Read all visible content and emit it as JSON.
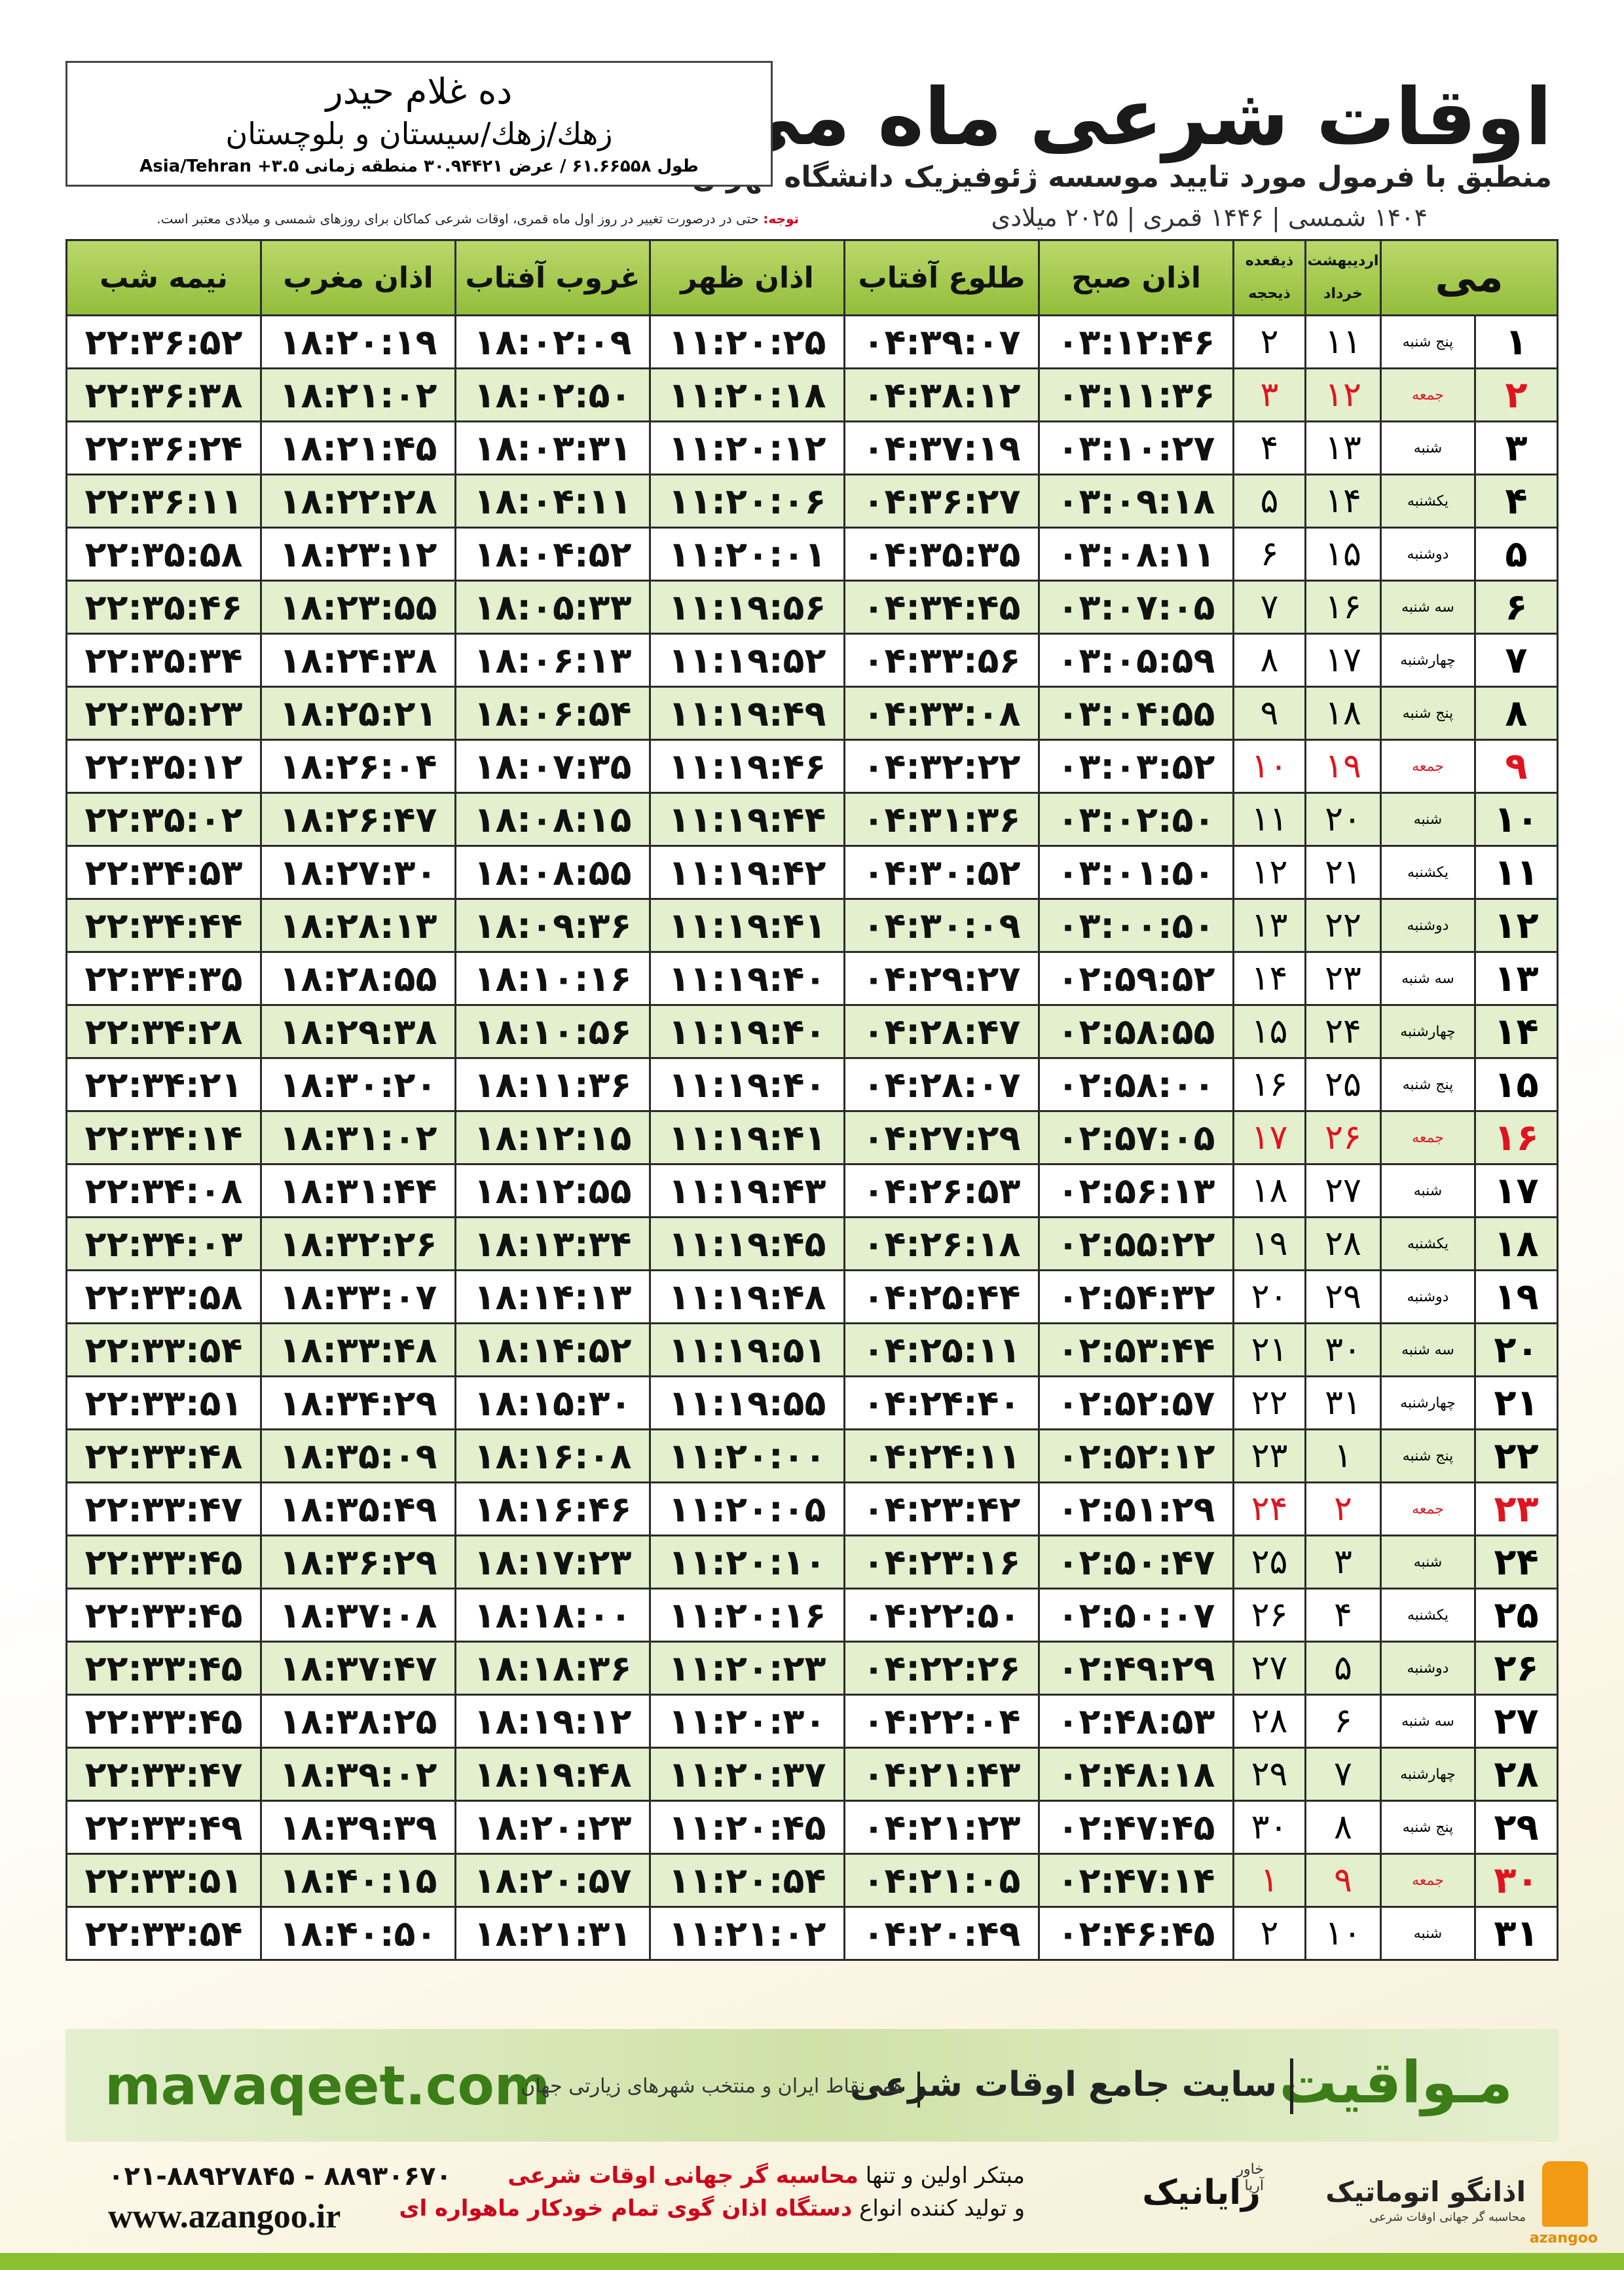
{
  "header": {
    "title": "اوقات شرعی ماه می",
    "subtitle": "منطبق با فرمول مورد تایید موسسه ژئوفیزیک دانشگاه تهران",
    "dates": "۱۴۰۴ شمسی | ۱۴۴۶ قمری | ۲۰۲۵ میلادی"
  },
  "location": {
    "name": "ده غلام حیدر",
    "region": "زهك/زهك/سیستان و بلوچستان",
    "coords": "طول ۶۱.۶۶۵۵۸ / عرض ۳۰.۹۴۴۲۱ منطقه زمانی ۳.۵+ Asia/Tehran"
  },
  "note": {
    "label": "توجه:",
    "text": "حتی در درصورت تغییر در روز اول ماه قمری، اوقات شرعی کماکان برای روزهای شمسی و میلادی معتبر است."
  },
  "table": {
    "header": {
      "month": "می",
      "shamsi": [
        "اردیبهشت",
        "خرداد"
      ],
      "qamari": [
        "ذیقعده",
        "ذیحجه"
      ],
      "columns": [
        "اذان صبح",
        "طلوع آفتاب",
        "اذان ظهر",
        "غروب آفتاب",
        "اذان مغرب",
        "نیمه شب"
      ]
    },
    "rows": [
      {
        "day": "۱",
        "weekday": "پنج شنبه",
        "shamsi": "۱۱",
        "qamari": "۲",
        "times": [
          "۰۳:۱۲:۴۶",
          "۰۴:۳۹:۰۷",
          "۱۱:۲۰:۲۵",
          "۱۸:۰۲:۰۹",
          "۱۸:۲۰:۱۹",
          "۲۲:۳۶:۵۲"
        ]
      },
      {
        "day": "۲",
        "weekday": "جمعه",
        "shamsi": "۱۲",
        "qamari": "۳",
        "holiday": true,
        "times": [
          "۰۳:۱۱:۳۶",
          "۰۴:۳۸:۱۲",
          "۱۱:۲۰:۱۸",
          "۱۸:۰۲:۵۰",
          "۱۸:۲۱:۰۲",
          "۲۲:۳۶:۳۸"
        ]
      },
      {
        "day": "۳",
        "weekday": "شنبه",
        "shamsi": "۱۳",
        "qamari": "۴",
        "times": [
          "۰۳:۱۰:۲۷",
          "۰۴:۳۷:۱۹",
          "۱۱:۲۰:۱۲",
          "۱۸:۰۳:۳۱",
          "۱۸:۲۱:۴۵",
          "۲۲:۳۶:۲۴"
        ]
      },
      {
        "day": "۴",
        "weekday": "یکشنبه",
        "shamsi": "۱۴",
        "qamari": "۵",
        "times": [
          "۰۳:۰۹:۱۸",
          "۰۴:۳۶:۲۷",
          "۱۱:۲۰:۰۶",
          "۱۸:۰۴:۱۱",
          "۱۸:۲۲:۲۸",
          "۲۲:۳۶:۱۱"
        ]
      },
      {
        "day": "۵",
        "weekday": "دوشنبه",
        "shamsi": "۱۵",
        "qamari": "۶",
        "times": [
          "۰۳:۰۸:۱۱",
          "۰۴:۳۵:۳۵",
          "۱۱:۲۰:۰۱",
          "۱۸:۰۴:۵۲",
          "۱۸:۲۳:۱۲",
          "۲۲:۳۵:۵۸"
        ]
      },
      {
        "day": "۶",
        "weekday": "سه شنبه",
        "shamsi": "۱۶",
        "qamari": "۷",
        "times": [
          "۰۳:۰۷:۰۵",
          "۰۴:۳۴:۴۵",
          "۱۱:۱۹:۵۶",
          "۱۸:۰۵:۳۳",
          "۱۸:۲۳:۵۵",
          "۲۲:۳۵:۴۶"
        ]
      },
      {
        "day": "۷",
        "weekday": "چهارشنبه",
        "shamsi": "۱۷",
        "qamari": "۸",
        "times": [
          "۰۳:۰۵:۵۹",
          "۰۴:۳۳:۵۶",
          "۱۱:۱۹:۵۲",
          "۱۸:۰۶:۱۳",
          "۱۸:۲۴:۳۸",
          "۲۲:۳۵:۳۴"
        ]
      },
      {
        "day": "۸",
        "weekday": "پنج شنبه",
        "shamsi": "۱۸",
        "qamari": "۹",
        "times": [
          "۰۳:۰۴:۵۵",
          "۰۴:۳۳:۰۸",
          "۱۱:۱۹:۴۹",
          "۱۸:۰۶:۵۴",
          "۱۸:۲۵:۲۱",
          "۲۲:۳۵:۲۳"
        ]
      },
      {
        "day": "۹",
        "weekday": "جمعه",
        "shamsi": "۱۹",
        "qamari": "۱۰",
        "holiday": true,
        "times": [
          "۰۳:۰۳:۵۲",
          "۰۴:۳۲:۲۲",
          "۱۱:۱۹:۴۶",
          "۱۸:۰۷:۳۵",
          "۱۸:۲۶:۰۴",
          "۲۲:۳۵:۱۲"
        ]
      },
      {
        "day": "۱۰",
        "weekday": "شنبه",
        "shamsi": "۲۰",
        "qamari": "۱۱",
        "times": [
          "۰۳:۰۲:۵۰",
          "۰۴:۳۱:۳۶",
          "۱۱:۱۹:۴۴",
          "۱۸:۰۸:۱۵",
          "۱۸:۲۶:۴۷",
          "۲۲:۳۵:۰۲"
        ]
      },
      {
        "day": "۱۱",
        "weekday": "یکشنبه",
        "shamsi": "۲۱",
        "qamari": "۱۲",
        "times": [
          "۰۳:۰۱:۵۰",
          "۰۴:۳۰:۵۲",
          "۱۱:۱۹:۴۲",
          "۱۸:۰۸:۵۵",
          "۱۸:۲۷:۳۰",
          "۲۲:۳۴:۵۳"
        ]
      },
      {
        "day": "۱۲",
        "weekday": "دوشنبه",
        "shamsi": "۲۲",
        "qamari": "۱۳",
        "times": [
          "۰۳:۰۰:۵۰",
          "۰۴:۳۰:۰۹",
          "۱۱:۱۹:۴۱",
          "۱۸:۰۹:۳۶",
          "۱۸:۲۸:۱۳",
          "۲۲:۳۴:۴۴"
        ]
      },
      {
        "day": "۱۳",
        "weekday": "سه شنبه",
        "shamsi": "۲۳",
        "qamari": "۱۴",
        "times": [
          "۰۲:۵۹:۵۲",
          "۰۴:۲۹:۲۷",
          "۱۱:۱۹:۴۰",
          "۱۸:۱۰:۱۶",
          "۱۸:۲۸:۵۵",
          "۲۲:۳۴:۳۵"
        ]
      },
      {
        "day": "۱۴",
        "weekday": "چهارشنبه",
        "shamsi": "۲۴",
        "qamari": "۱۵",
        "times": [
          "۰۲:۵۸:۵۵",
          "۰۴:۲۸:۴۷",
          "۱۱:۱۹:۴۰",
          "۱۸:۱۰:۵۶",
          "۱۸:۲۹:۳۸",
          "۲۲:۳۴:۲۸"
        ]
      },
      {
        "day": "۱۵",
        "weekday": "پنج شنبه",
        "shamsi": "۲۵",
        "qamari": "۱۶",
        "times": [
          "۰۲:۵۸:۰۰",
          "۰۴:۲۸:۰۷",
          "۱۱:۱۹:۴۰",
          "۱۸:۱۱:۳۶",
          "۱۸:۳۰:۲۰",
          "۲۲:۳۴:۲۱"
        ]
      },
      {
        "day": "۱۶",
        "weekday": "جمعه",
        "shamsi": "۲۶",
        "qamari": "۱۷",
        "holiday": true,
        "times": [
          "۰۲:۵۷:۰۵",
          "۰۴:۲۷:۲۹",
          "۱۱:۱۹:۴۱",
          "۱۸:۱۲:۱۵",
          "۱۸:۳۱:۰۲",
          "۲۲:۳۴:۱۴"
        ]
      },
      {
        "day": "۱۷",
        "weekday": "شنبه",
        "shamsi": "۲۷",
        "qamari": "۱۸",
        "times": [
          "۰۲:۵۶:۱۳",
          "۰۴:۲۶:۵۳",
          "۱۱:۱۹:۴۳",
          "۱۸:۱۲:۵۵",
          "۱۸:۳۱:۴۴",
          "۲۲:۳۴:۰۸"
        ]
      },
      {
        "day": "۱۸",
        "weekday": "یکشنبه",
        "shamsi": "۲۸",
        "qamari": "۱۹",
        "times": [
          "۰۲:۵۵:۲۲",
          "۰۴:۲۶:۱۸",
          "۱۱:۱۹:۴۵",
          "۱۸:۱۳:۳۴",
          "۱۸:۳۲:۲۶",
          "۲۲:۳۴:۰۳"
        ]
      },
      {
        "day": "۱۹",
        "weekday": "دوشنبه",
        "shamsi": "۲۹",
        "qamari": "۲۰",
        "times": [
          "۰۲:۵۴:۳۲",
          "۰۴:۲۵:۴۴",
          "۱۱:۱۹:۴۸",
          "۱۸:۱۴:۱۳",
          "۱۸:۳۳:۰۷",
          "۲۲:۳۳:۵۸"
        ]
      },
      {
        "day": "۲۰",
        "weekday": "سه شنبه",
        "shamsi": "۳۰",
        "qamari": "۲۱",
        "times": [
          "۰۲:۵۳:۴۴",
          "۰۴:۲۵:۱۱",
          "۱۱:۱۹:۵۱",
          "۱۸:۱۴:۵۲",
          "۱۸:۳۳:۴۸",
          "۲۲:۳۳:۵۴"
        ]
      },
      {
        "day": "۲۱",
        "weekday": "چهارشنبه",
        "shamsi": "۳۱",
        "qamari": "۲۲",
        "times": [
          "۰۲:۵۲:۵۷",
          "۰۴:۲۴:۴۰",
          "۱۱:۱۹:۵۵",
          "۱۸:۱۵:۳۰",
          "۱۸:۳۴:۲۹",
          "۲۲:۳۳:۵۱"
        ]
      },
      {
        "day": "۲۲",
        "weekday": "پنج شنبه",
        "shamsi": "۱",
        "qamari": "۲۳",
        "times": [
          "۰۲:۵۲:۱۲",
          "۰۴:۲۴:۱۱",
          "۱۱:۲۰:۰۰",
          "۱۸:۱۶:۰۸",
          "۱۸:۳۵:۰۹",
          "۲۲:۳۳:۴۸"
        ]
      },
      {
        "day": "۲۳",
        "weekday": "جمعه",
        "shamsi": "۲",
        "qamari": "۲۴",
        "holiday": true,
        "times": [
          "۰۲:۵۱:۲۹",
          "۰۴:۲۳:۴۲",
          "۱۱:۲۰:۰۵",
          "۱۸:۱۶:۴۶",
          "۱۸:۳۵:۴۹",
          "۲۲:۳۳:۴۷"
        ]
      },
      {
        "day": "۲۴",
        "weekday": "شنبه",
        "shamsi": "۳",
        "qamari": "۲۵",
        "times": [
          "۰۲:۵۰:۴۷",
          "۰۴:۲۳:۱۶",
          "۱۱:۲۰:۱۰",
          "۱۸:۱۷:۲۳",
          "۱۸:۳۶:۲۹",
          "۲۲:۳۳:۴۵"
        ]
      },
      {
        "day": "۲۵",
        "weekday": "یکشنبه",
        "shamsi": "۴",
        "qamari": "۲۶",
        "times": [
          "۰۲:۵۰:۰۷",
          "۰۴:۲۲:۵۰",
          "۱۱:۲۰:۱۶",
          "۱۸:۱۸:۰۰",
          "۱۸:۳۷:۰۸",
          "۲۲:۳۳:۴۵"
        ]
      },
      {
        "day": "۲۶",
        "weekday": "دوشنبه",
        "shamsi": "۵",
        "qamari": "۲۷",
        "times": [
          "۰۲:۴۹:۲۹",
          "۰۴:۲۲:۲۶",
          "۱۱:۲۰:۲۳",
          "۱۸:۱۸:۳۶",
          "۱۸:۳۷:۴۷",
          "۲۲:۳۳:۴۵"
        ]
      },
      {
        "day": "۲۷",
        "weekday": "سه شنبه",
        "shamsi": "۶",
        "qamari": "۲۸",
        "times": [
          "۰۲:۴۸:۵۳",
          "۰۴:۲۲:۰۴",
          "۱۱:۲۰:۳۰",
          "۱۸:۱۹:۱۲",
          "۱۸:۳۸:۲۵",
          "۲۲:۳۳:۴۵"
        ]
      },
      {
        "day": "۲۸",
        "weekday": "چهارشنبه",
        "shamsi": "۷",
        "qamari": "۲۹",
        "times": [
          "۰۲:۴۸:۱۸",
          "۰۴:۲۱:۴۳",
          "۱۱:۲۰:۳۷",
          "۱۸:۱۹:۴۸",
          "۱۸:۳۹:۰۲",
          "۲۲:۳۳:۴۷"
        ]
      },
      {
        "day": "۲۹",
        "weekday": "پنج شنبه",
        "shamsi": "۸",
        "qamari": "۳۰",
        "times": [
          "۰۲:۴۷:۴۵",
          "۰۴:۲۱:۲۳",
          "۱۱:۲۰:۴۵",
          "۱۸:۲۰:۲۳",
          "۱۸:۳۹:۳۹",
          "۲۲:۳۳:۴۹"
        ]
      },
      {
        "day": "۳۰",
        "weekday": "جمعه",
        "shamsi": "۹",
        "qamari": "۱",
        "holiday": true,
        "times": [
          "۰۲:۴۷:۱۴",
          "۰۴:۲۱:۰۵",
          "۱۱:۲۰:۵۴",
          "۱۸:۲۰:۵۷",
          "۱۸:۴۰:۱۵",
          "۲۲:۳۳:۵۱"
        ]
      },
      {
        "day": "۳۱",
        "weekday": "شنبه",
        "shamsi": "۱۰",
        "qamari": "۲",
        "times": [
          "۰۲:۴۶:۴۵",
          "۰۴:۲۰:۴۹",
          "۱۱:۲۱:۰۲",
          "۱۸:۲۱:۳۱",
          "۱۸:۴۰:۵۰",
          "۲۲:۳۳:۵۴"
        ]
      }
    ]
  },
  "footer": {
    "site_name": "مـواقیت",
    "site_tagline": "سایت جامع اوقات شرعی",
    "site_desc": "همه نقاط ایران و منتخب شهرهای زیارتی جهان",
    "url": "mavaqeet.com"
  },
  "company": {
    "phones": "۰۲۱-۸۸۹۲۷۸۴۵ - ۸۸۹۳۰۶۷۰",
    "website": "www.azangoo.ir",
    "line1_a": "مبتکر اولین و تنها",
    "line1_b": "محاسبه گر جهانی اوقات شرعی",
    "line2_a": "و تولید کننده انواع",
    "line2_b": "دستگاه اذان گوی تمام خودکار ماهواره ای",
    "logo1": "رایانیک",
    "logo1_sub": "خاور آریا",
    "logo2": "اذانگو اتوماتیک",
    "logo2_sub": "محاسبه گر جهانی اوقات شرعی",
    "logo2_en": "azangoo"
  }
}
